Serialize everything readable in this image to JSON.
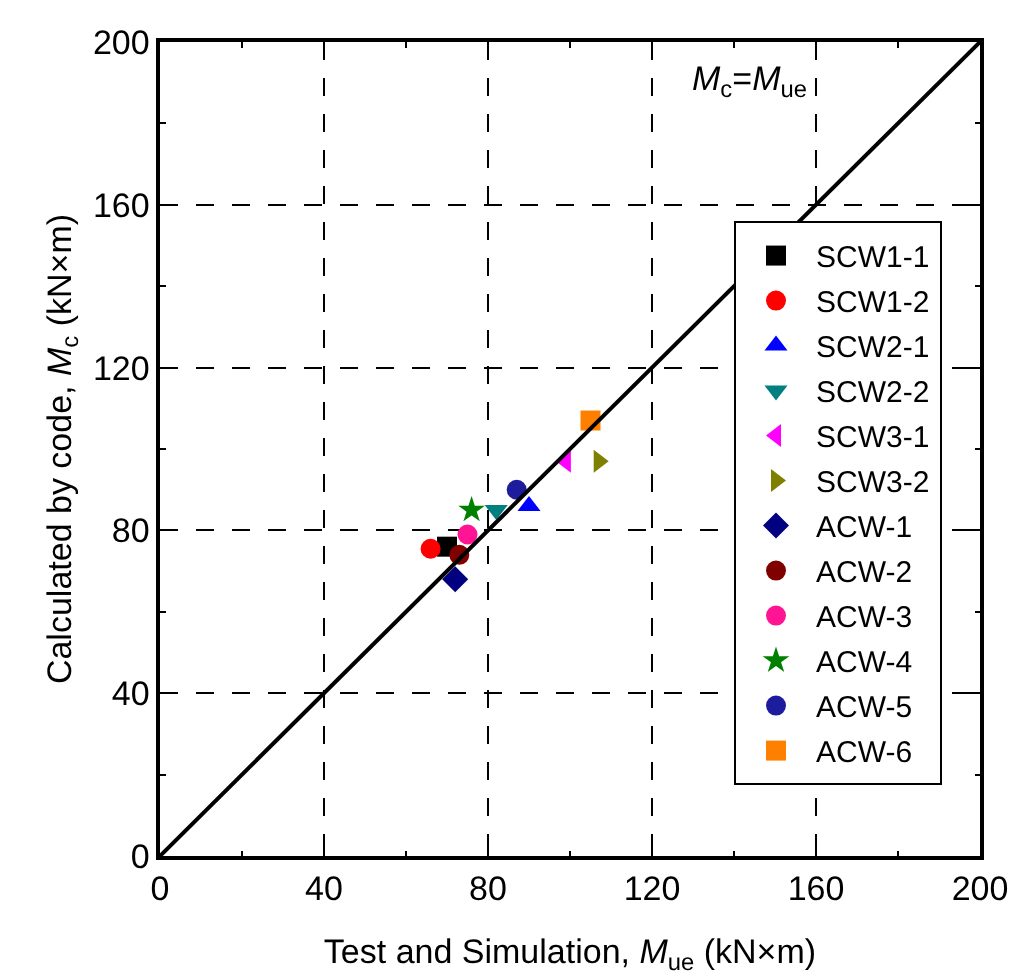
{
  "chart_data": {
    "type": "scatter",
    "xlabel": "Test and Simulation, M$_{ue}$ (kN×m)",
    "ylabel": "Calculated by code, M$_{c}$ (kN×m)",
    "xlim": [
      0,
      200
    ],
    "ylim": [
      0,
      200
    ],
    "xticks": [
      0,
      40,
      80,
      120,
      160,
      200
    ],
    "yticks": [
      0,
      40,
      80,
      120,
      160,
      200
    ],
    "grid": true,
    "legend": "right",
    "annotations": [
      "M$_{c}$=M$_{ue}$"
    ],
    "series": [
      {
        "name": "SCW1-1",
        "color": "#000000",
        "marker": "square",
        "x": [
          70
        ],
        "values": [
          76
        ]
      },
      {
        "name": "SCW1-2",
        "color": "#ff0000",
        "marker": "circle",
        "x": [
          66
        ],
        "values": [
          75.5
        ]
      },
      {
        "name": "SCW2-1",
        "color": "#0000ff",
        "marker": "triangle-up",
        "x": [
          90
        ],
        "values": [
          86
        ]
      },
      {
        "name": "SCW2-2",
        "color": "#008080",
        "marker": "triangle-down",
        "x": [
          82
        ],
        "values": [
          85
        ]
      },
      {
        "name": "SCW3-1",
        "color": "#ff00ff",
        "marker": "triangle-left",
        "x": [
          99
        ],
        "values": [
          97
        ]
      },
      {
        "name": "SCW3-2",
        "color": "#808000",
        "marker": "triangle-right",
        "x": [
          107
        ],
        "values": [
          97
        ]
      },
      {
        "name": "ACW-1",
        "color": "#000080",
        "marker": "diamond",
        "x": [
          72
        ],
        "values": [
          68
        ]
      },
      {
        "name": "ACW-2",
        "color": "#800000",
        "x": [
          73
        ],
        "values": [
          74
        ]
      },
      {
        "name": "ACW-3",
        "color": "#ff1493",
        "x": [
          75
        ],
        "values": [
          79
        ]
      },
      {
        "name": "ACW-4",
        "color": "#008000",
        "marker": "star",
        "x": [
          76
        ],
        "values": [
          85
        ]
      },
      {
        "name": "ACW-5",
        "color": "#1c1c9c",
        "marker": "circle",
        "x": [
          87
        ],
        "values": [
          90
        ]
      },
      {
        "name": "ACW-6",
        "color": "#ff8000",
        "marker": "square",
        "x": [
          105
        ],
        "values": [
          107
        ]
      },
      {
        "type": "line",
        "color": "#000000",
        "line_style": "solid",
        "x": [
          0,
          200
        ],
        "values": [
          0,
          200
        ]
      }
    ]
  }
}
